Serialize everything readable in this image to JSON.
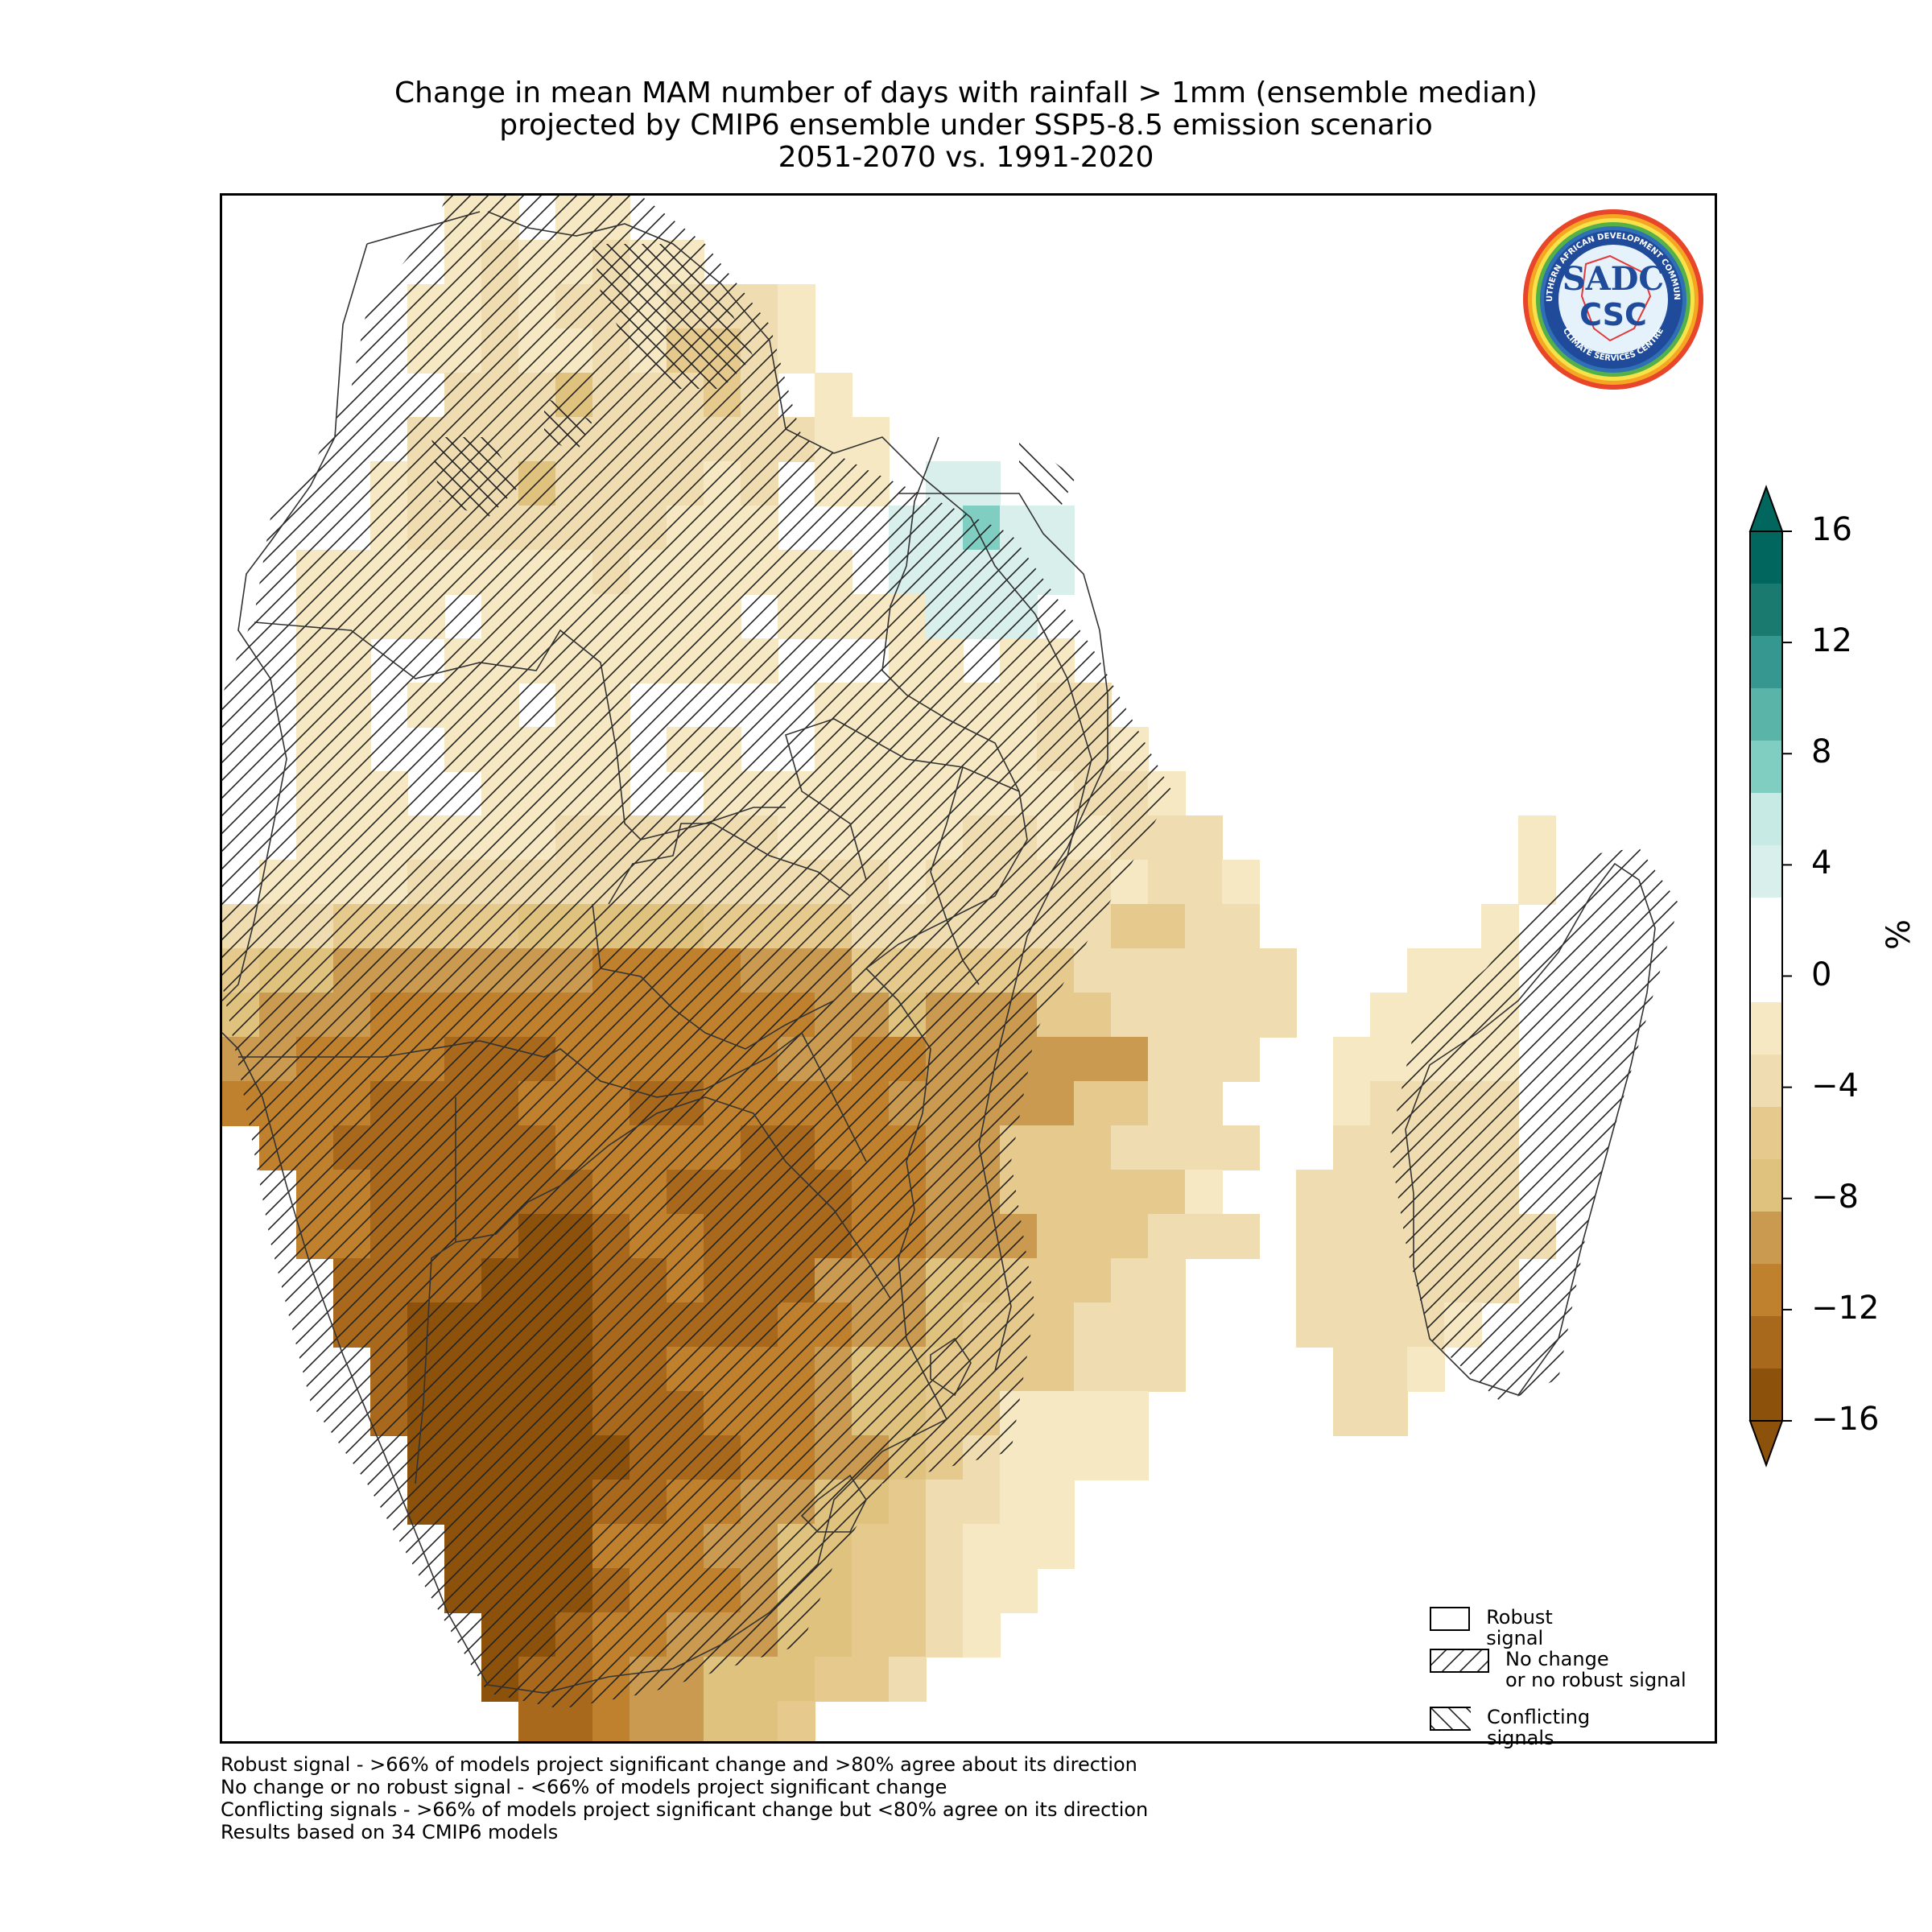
{
  "title": {
    "line1": "Change in mean MAM number of days with rainfall > 1mm (ensemble median)",
    "line2": "projected by CMIP6 ensemble under SSP5-8.5 emission scenario",
    "line3": "2051-2070 vs. 1991-2020"
  },
  "logo": {
    "ring_text_top": "SOUTHERN AFRICAN DEVELOPMENT COMMUNITY",
    "ring_text_bottom": "CLIMATE SERVICES CENTRE",
    "monogram": "SADC",
    "abbrev": "CSC"
  },
  "colorbar": {
    "unit": "%",
    "ticks": [
      "16",
      "12",
      "8",
      "4",
      "0",
      "−4",
      "−8",
      "−12",
      "−16"
    ],
    "colors": [
      "#01665e",
      "#1a7a70",
      "#35978f",
      "#5ab4a8",
      "#80cdc1",
      "#c7eae5",
      "#d8efeb",
      "#ffffff",
      "#ffffff",
      "#f6e8c3",
      "#efdcb0",
      "#e6c98c",
      "#dfc27d",
      "#c99a4f",
      "#bf812d",
      "#a8691d",
      "#8c510a"
    ],
    "over_color": "#01665e",
    "under_color": "#8c510a"
  },
  "legend": {
    "items": [
      {
        "label": "Robust signal",
        "pattern": "none"
      },
      {
        "label": "No change\nor no robust signal",
        "pattern": "forward-hatch"
      },
      {
        "label": "Conflicting signals",
        "pattern": "back-hatch"
      }
    ]
  },
  "footnotes": [
    "Robust signal - >66% of models project significant change and >80% agree about its direction",
    "No change or no robust signal - <66% of models project significant change",
    "Conflicting signals - >66% of models project significant change but <80% agree on its direction",
    "Results based on 34 CMIP6 models"
  ]
}
